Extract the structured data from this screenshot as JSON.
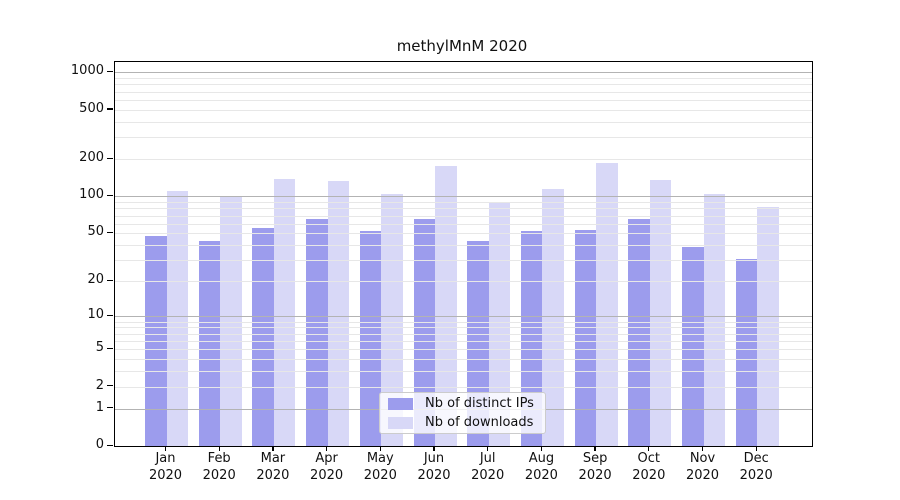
{
  "chart_data": {
    "type": "bar",
    "title": "methylMnM 2020",
    "yscale": "log1p",
    "grid": true,
    "categories": [
      "Jan 2020",
      "Feb 2020",
      "Mar 2020",
      "Apr 2020",
      "May 2020",
      "Jun 2020",
      "Jul 2020",
      "Aug 2020",
      "Sep 2020",
      "Oct 2020",
      "Nov 2020",
      "Dec 2020"
    ],
    "series": [
      {
        "name": "Nb of distinct IPs",
        "color": "#9c9ced",
        "values": [
          48,
          43,
          55,
          65,
          52,
          65,
          43,
          52,
          53,
          65,
          39,
          31
        ]
      },
      {
        "name": "Nb of downloads",
        "color": "#d8d8f7",
        "values": [
          111,
          100,
          139,
          134,
          105,
          175,
          88,
          115,
          186,
          137,
          104,
          82
        ]
      }
    ],
    "yticks": [
      0,
      1,
      2,
      5,
      10,
      20,
      50,
      100,
      200,
      500,
      1000
    ],
    "ylim": [
      0,
      1230
    ],
    "xlabel": "",
    "ylabel": "",
    "legend_position": "lower center",
    "grid_major_color": "#b3b3b3",
    "grid_minor_color": "#e7e7e7",
    "axis_color": "#000000",
    "text_color": "#111111",
    "background_color": "#ffffff"
  }
}
